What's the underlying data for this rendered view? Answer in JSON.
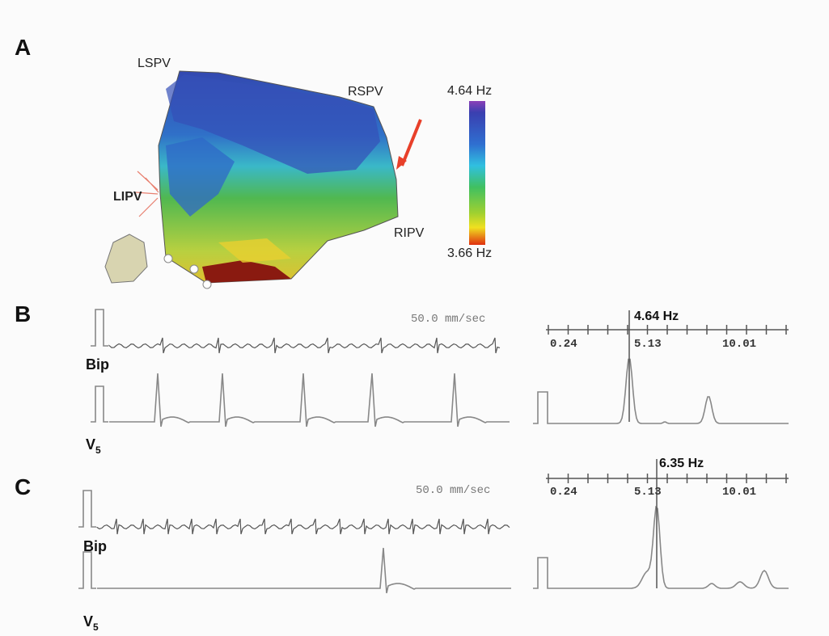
{
  "panels": [
    {
      "label": "A",
      "map": {
        "landmarks": [
          "LSPV",
          "RSPV",
          "LIPV",
          "RIPV"
        ],
        "scale": {
          "max": "4.64 Hz",
          "min": "3.66 Hz"
        }
      }
    },
    {
      "label": "B",
      "speed": "50.0 mm/sec",
      "leads": {
        "bip": "Bip",
        "v": {
          "main": "V",
          "sub": "5"
        }
      },
      "spectrum": {
        "peak": "4.64 Hz",
        "ticks": [
          "0.24",
          "5.13",
          "10.01"
        ]
      }
    },
    {
      "label": "C",
      "speed": "50.0 mm/sec",
      "leads": {
        "bip": "Bip",
        "v": {
          "main": "V",
          "sub": "5"
        }
      },
      "spectrum": {
        "peak": "6.35 Hz",
        "ticks": [
          "0.24",
          "5.13",
          "10.01"
        ]
      }
    }
  ]
}
